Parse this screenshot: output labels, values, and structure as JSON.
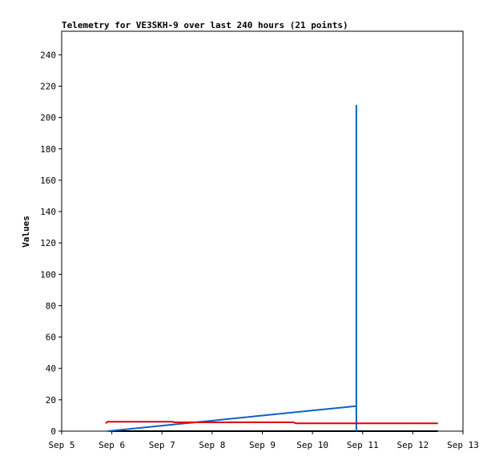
{
  "chart_data": {
    "type": "line",
    "title": "Telemetry for VE3SKH-9 over last 240 hours (21 points)",
    "ylabel": "Values",
    "xlabel": "",
    "xlim": [
      "Sep 5",
      "Sep 13"
    ],
    "ylim": [
      0,
      255
    ],
    "x_ticks": [
      "Sep 5",
      "Sep 6",
      "Sep 7",
      "Sep 8",
      "Sep 9",
      "Sep 10",
      "Sep 11",
      "Sep 12",
      "Sep 13"
    ],
    "y_ticks": [
      0,
      20,
      40,
      60,
      80,
      100,
      120,
      140,
      160,
      180,
      200,
      220,
      240
    ],
    "grid": false,
    "legend": "none",
    "series": [
      {
        "color": "#e00000",
        "points": [
          {
            "x": "Sep 5 21:00",
            "y": 5
          },
          {
            "x": "Sep 5 22:00",
            "y": 6
          },
          {
            "x": "Sep 7 05:00",
            "y": 6
          },
          {
            "x": "Sep 7 06:00",
            "y": 5.6
          },
          {
            "x": "Sep 9 15:00",
            "y": 5.6
          },
          {
            "x": "Sep 9 16:00",
            "y": 5
          },
          {
            "x": "Sep 12 12:00",
            "y": 5
          }
        ]
      },
      {
        "color": "#1060c0",
        "points": [
          {
            "x": "Sep 5 22:00",
            "y": 0
          },
          {
            "x": "Sep 10 21:00",
            "y": 16
          },
          {
            "x": "Sep 10 21:00",
            "y": 208
          },
          {
            "x": "Sep 10 21:00",
            "y": 0
          }
        ]
      },
      {
        "color": "#000000",
        "points": [
          {
            "x": "Sep 5 22:00",
            "y": 0
          },
          {
            "x": "Sep 12 12:00",
            "y": 0
          }
        ]
      }
    ]
  }
}
